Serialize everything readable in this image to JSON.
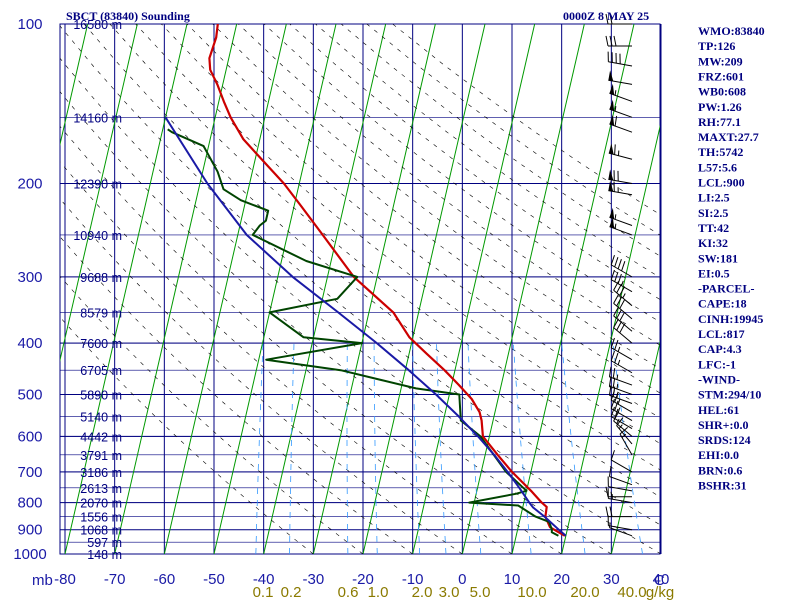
{
  "header": {
    "station": "SBCT (83840) Sounding",
    "datetime": "0000Z  8 MAY 25"
  },
  "indices": [
    "WMO:83840",
    "TP:126",
    "MW:209",
    "FRZ:601",
    "WB0:608",
    "PW:1.26",
    "RH:77.1",
    "MAXT:27.7",
    "TH:5742",
    "L57:5.6",
    "LCL:900",
    "LI:2.5",
    "SI:2.5",
    "TT:42",
    "KI:32",
    "SW:181",
    "EI:0.5",
    "-PARCEL-",
    "CAPE:18",
    "CINH:19945",
    "LCL:817",
    "CAP:4.3",
    "LFC:-1",
    "-WIND-",
    "STM:294/10",
    "HEL:61",
    "SHR+:0.0",
    "SRDS:124",
    "EHI:0.0",
    "BRN:0.6",
    "BSHR:31"
  ],
  "colors": {
    "grid": "#000080",
    "isotherm": "#009900",
    "adiabat": "#000000",
    "mixing": "#3399ff",
    "temp": "#cc0000",
    "dewpoint": "#004400",
    "parcel": "#1a1aa6"
  },
  "chart_data": {
    "type": "line",
    "title": "SBCT (83840) Sounding",
    "x_axis": {
      "label": "C",
      "range": [
        -80,
        40
      ],
      "ticks": [
        "-80",
        "-70",
        "-60",
        "-50",
        "-40",
        "-30",
        "-20",
        "-10",
        "0",
        "10",
        "20",
        "30",
        "40"
      ]
    },
    "y_axis": {
      "label": "mb",
      "scale": "log-pressure",
      "range": [
        1000,
        100
      ],
      "ticks": [
        "100",
        "200",
        "300",
        "400",
        "500",
        "600",
        "700",
        "800",
        "900",
        "1000"
      ]
    },
    "height_labels": [
      {
        "p": 100,
        "z": "16580 m"
      },
      {
        "p": 150,
        "z": "14160 m"
      },
      {
        "p": 200,
        "z": "12390 m"
      },
      {
        "p": 250,
        "z": "10940 m"
      },
      {
        "p": 300,
        "z": "9688 m"
      },
      {
        "p": 350,
        "z": "8579 m"
      },
      {
        "p": 400,
        "z": "7600 m"
      },
      {
        "p": 450,
        "z": "6705 m"
      },
      {
        "p": 500,
        "z": "5890 m"
      },
      {
        "p": 550,
        "z": "5140 m"
      },
      {
        "p": 600,
        "z": "4442 m"
      },
      {
        "p": 650,
        "z": "3791 m"
      },
      {
        "p": 700,
        "z": "3186 m"
      },
      {
        "p": 750,
        "z": "2613 m"
      },
      {
        "p": 800,
        "z": "2070 m"
      },
      {
        "p": 850,
        "z": "1556 m"
      },
      {
        "p": 900,
        "z": "1068 m"
      },
      {
        "p": 950,
        "z": "597 m"
      },
      {
        "p": 1000,
        "z": "148 m"
      }
    ],
    "mixing_ratio_labels": [
      "0.1",
      "0.2",
      "0.6",
      "1.0",
      "2.0",
      "3.0",
      "5.0",
      "10.0",
      "20.0",
      "40.0",
      "g/kg"
    ],
    "series": [
      {
        "name": "Temperature",
        "points": [
          [
            924,
            19.8
          ],
          [
            910,
            18.4
          ],
          [
            890,
            16.4
          ],
          [
            850,
            15.0
          ],
          [
            815,
            14.8
          ],
          [
            800,
            13.6
          ],
          [
            760,
            10.9
          ],
          [
            700,
            6.2
          ],
          [
            650,
            2.5
          ],
          [
            600,
            -1.3
          ],
          [
            560,
            -2.3
          ],
          [
            540,
            -3.1
          ],
          [
            510,
            -5.3
          ],
          [
            480,
            -8.5
          ],
          [
            450,
            -12.1
          ],
          [
            420,
            -16.3
          ],
          [
            390,
            -20.7
          ],
          [
            350,
            -25.1
          ],
          [
            300,
            -34.7
          ],
          [
            250,
            -42.9
          ],
          [
            220,
            -48.7
          ],
          [
            200,
            -53.1
          ],
          [
            180,
            -58.7
          ],
          [
            165,
            -63.3
          ],
          [
            150,
            -66.9
          ],
          [
            140,
            -69.0
          ],
          [
            130,
            -71.1
          ],
          [
            122,
            -73.2
          ],
          [
            116,
            -73.9
          ],
          [
            106,
            -73.5
          ],
          [
            100,
            -73.8
          ]
        ]
      },
      {
        "name": "Dewpoint",
        "points": [
          [
            924,
            18.5
          ],
          [
            910,
            17.0
          ],
          [
            900,
            16.9
          ],
          [
            870,
            16.0
          ],
          [
            850,
            13.0
          ],
          [
            810,
            9.0
          ],
          [
            800,
            -1.0
          ],
          [
            770,
            8.0
          ],
          [
            760,
            10.0
          ],
          [
            700,
            5.0
          ],
          [
            600,
            -1.8
          ],
          [
            560,
            -6.5
          ],
          [
            500,
            -8.0
          ],
          [
            487,
            -17.0
          ],
          [
            450,
            -33.0
          ],
          [
            430,
            -48.5
          ],
          [
            400,
            -30.0
          ],
          [
            390,
            -42.0
          ],
          [
            350,
            -50.0
          ],
          [
            330,
            -37.0
          ],
          [
            300,
            -34.0
          ],
          [
            280,
            -45.0
          ],
          [
            250,
            -57.0
          ],
          [
            240,
            -56.0
          ],
          [
            235,
            -55.0
          ],
          [
            225,
            -55.0
          ],
          [
            215,
            -61.0
          ],
          [
            205,
            -65.0
          ],
          [
            190,
            -67.0
          ],
          [
            170,
            -71.0
          ],
          [
            160,
            -78.0
          ],
          [
            158,
            -79.0
          ]
        ]
      },
      {
        "name": "Parcel",
        "points": [
          [
            924,
            20.0
          ],
          [
            900,
            18.3
          ],
          [
            850,
            14.8
          ],
          [
            817,
            12.1
          ],
          [
            800,
            11.1
          ],
          [
            750,
            8.4
          ],
          [
            700,
            5.3
          ],
          [
            650,
            1.8
          ],
          [
            600,
            -2.3
          ],
          [
            550,
            -7.1
          ],
          [
            500,
            -12.7
          ],
          [
            450,
            -19.3
          ],
          [
            400,
            -27.0
          ],
          [
            350,
            -36.2
          ],
          [
            300,
            -47.0
          ],
          [
            250,
            -58.2
          ],
          [
            200,
            -68.5
          ],
          [
            150,
            -80.0
          ]
        ]
      }
    ],
    "wind_barbs": [
      {
        "p": 924,
        "dir": 290,
        "spd": 5
      },
      {
        "p": 900,
        "dir": 280,
        "spd": 10
      },
      {
        "p": 850,
        "dir": 270,
        "spd": 20
      },
      {
        "p": 800,
        "dir": 280,
        "spd": 15
      },
      {
        "p": 780,
        "dir": 270,
        "spd": 15
      },
      {
        "p": 760,
        "dir": 280,
        "spd": 10
      },
      {
        "p": 740,
        "dir": 290,
        "spd": 10
      },
      {
        "p": 700,
        "dir": 300,
        "spd": 10
      },
      {
        "p": 650,
        "dir": 330,
        "spd": 15
      },
      {
        "p": 620,
        "dir": 320,
        "spd": 15
      },
      {
        "p": 600,
        "dir": 310,
        "spd": 15
      },
      {
        "p": 580,
        "dir": 300,
        "spd": 20
      },
      {
        "p": 560,
        "dir": 300,
        "spd": 25
      },
      {
        "p": 540,
        "dir": 300,
        "spd": 25
      },
      {
        "p": 520,
        "dir": 290,
        "spd": 25
      },
      {
        "p": 500,
        "dir": 290,
        "spd": 25
      },
      {
        "p": 480,
        "dir": 290,
        "spd": 25
      },
      {
        "p": 455,
        "dir": 300,
        "spd": 25
      },
      {
        "p": 430,
        "dir": 300,
        "spd": 25
      },
      {
        "p": 400,
        "dir": 310,
        "spd": 30
      },
      {
        "p": 380,
        "dir": 310,
        "spd": 30
      },
      {
        "p": 360,
        "dir": 310,
        "spd": 30
      },
      {
        "p": 340,
        "dir": 310,
        "spd": 35
      },
      {
        "p": 320,
        "dir": 300,
        "spd": 35
      },
      {
        "p": 300,
        "dir": 300,
        "spd": 40
      },
      {
        "p": 250,
        "dir": 290,
        "spd": 55
      },
      {
        "p": 240,
        "dir": 290,
        "spd": 55
      },
      {
        "p": 210,
        "dir": 280,
        "spd": 65
      },
      {
        "p": 200,
        "dir": 280,
        "spd": 70
      },
      {
        "p": 180,
        "dir": 285,
        "spd": 65
      },
      {
        "p": 160,
        "dir": 290,
        "spd": 60
      },
      {
        "p": 150,
        "dir": 290,
        "spd": 55
      },
      {
        "p": 140,
        "dir": 290,
        "spd": 55
      },
      {
        "p": 130,
        "dir": 280,
        "spd": 50
      },
      {
        "p": 120,
        "dir": 280,
        "spd": 40
      },
      {
        "p": 110,
        "dir": 270,
        "spd": 30
      },
      {
        "p": 100,
        "dir": 270,
        "spd": 20
      }
    ],
    "grid": true
  }
}
